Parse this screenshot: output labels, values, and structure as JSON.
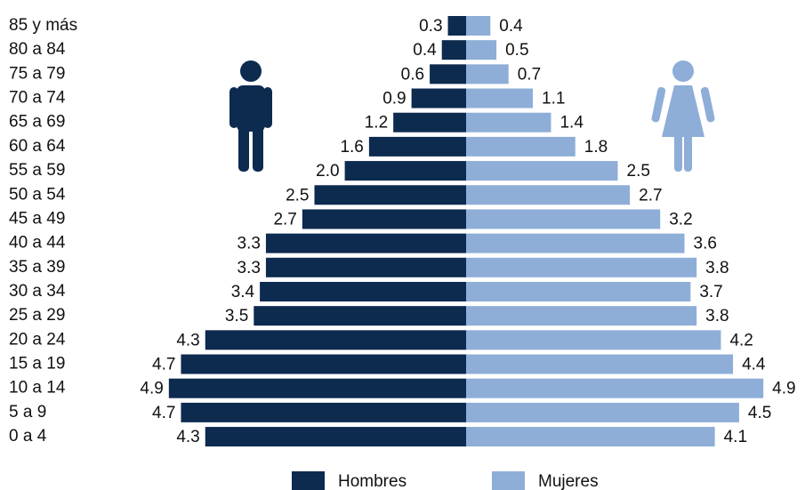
{
  "chart_data": {
    "type": "pyramid",
    "categories": [
      "85 y más",
      "80 a 84",
      "75 a 79",
      "70 a 74",
      "65 a 69",
      "60 a 64",
      "55 a 59",
      "50 a 54",
      "45 a 49",
      "40 a 44",
      "35 a 39",
      "30 a 34",
      "25 a 29",
      "20 a 24",
      "15 a 19",
      "10 a 14",
      "5 a 9",
      "0 a 4"
    ],
    "series": [
      {
        "name": "Hombres",
        "color": "#0d2a4f",
        "values": [
          0.3,
          0.4,
          0.6,
          0.9,
          1.2,
          1.6,
          2.0,
          2.5,
          2.7,
          3.3,
          3.3,
          3.4,
          3.5,
          4.3,
          4.7,
          4.9,
          4.7,
          4.3
        ],
        "value_labels": [
          "0.3",
          "0.4",
          "0.6",
          "0.9",
          "1.2",
          "1.6",
          "2.0",
          "2.5",
          "2.7",
          "3.3",
          "3.3",
          "3.4",
          "3.5",
          "4.3",
          "4.7",
          "4.9",
          "4.7",
          "4.3"
        ]
      },
      {
        "name": "Mujeres",
        "color": "#8eaed8",
        "values": [
          0.4,
          0.5,
          0.7,
          1.1,
          1.4,
          1.8,
          2.5,
          2.7,
          3.2,
          3.6,
          3.8,
          3.7,
          3.8,
          4.2,
          4.4,
          4.9,
          4.5,
          4.1
        ],
        "value_labels": [
          "0.4",
          "0.5",
          "0.7",
          "1.1",
          "1.4",
          "1.8",
          "2.5",
          "2.7",
          "3.2",
          "3.6",
          "3.8",
          "3.7",
          "3.8",
          "4.2",
          "4.4",
          "4.9",
          "4.5",
          "4.1"
        ]
      }
    ]
  }
}
